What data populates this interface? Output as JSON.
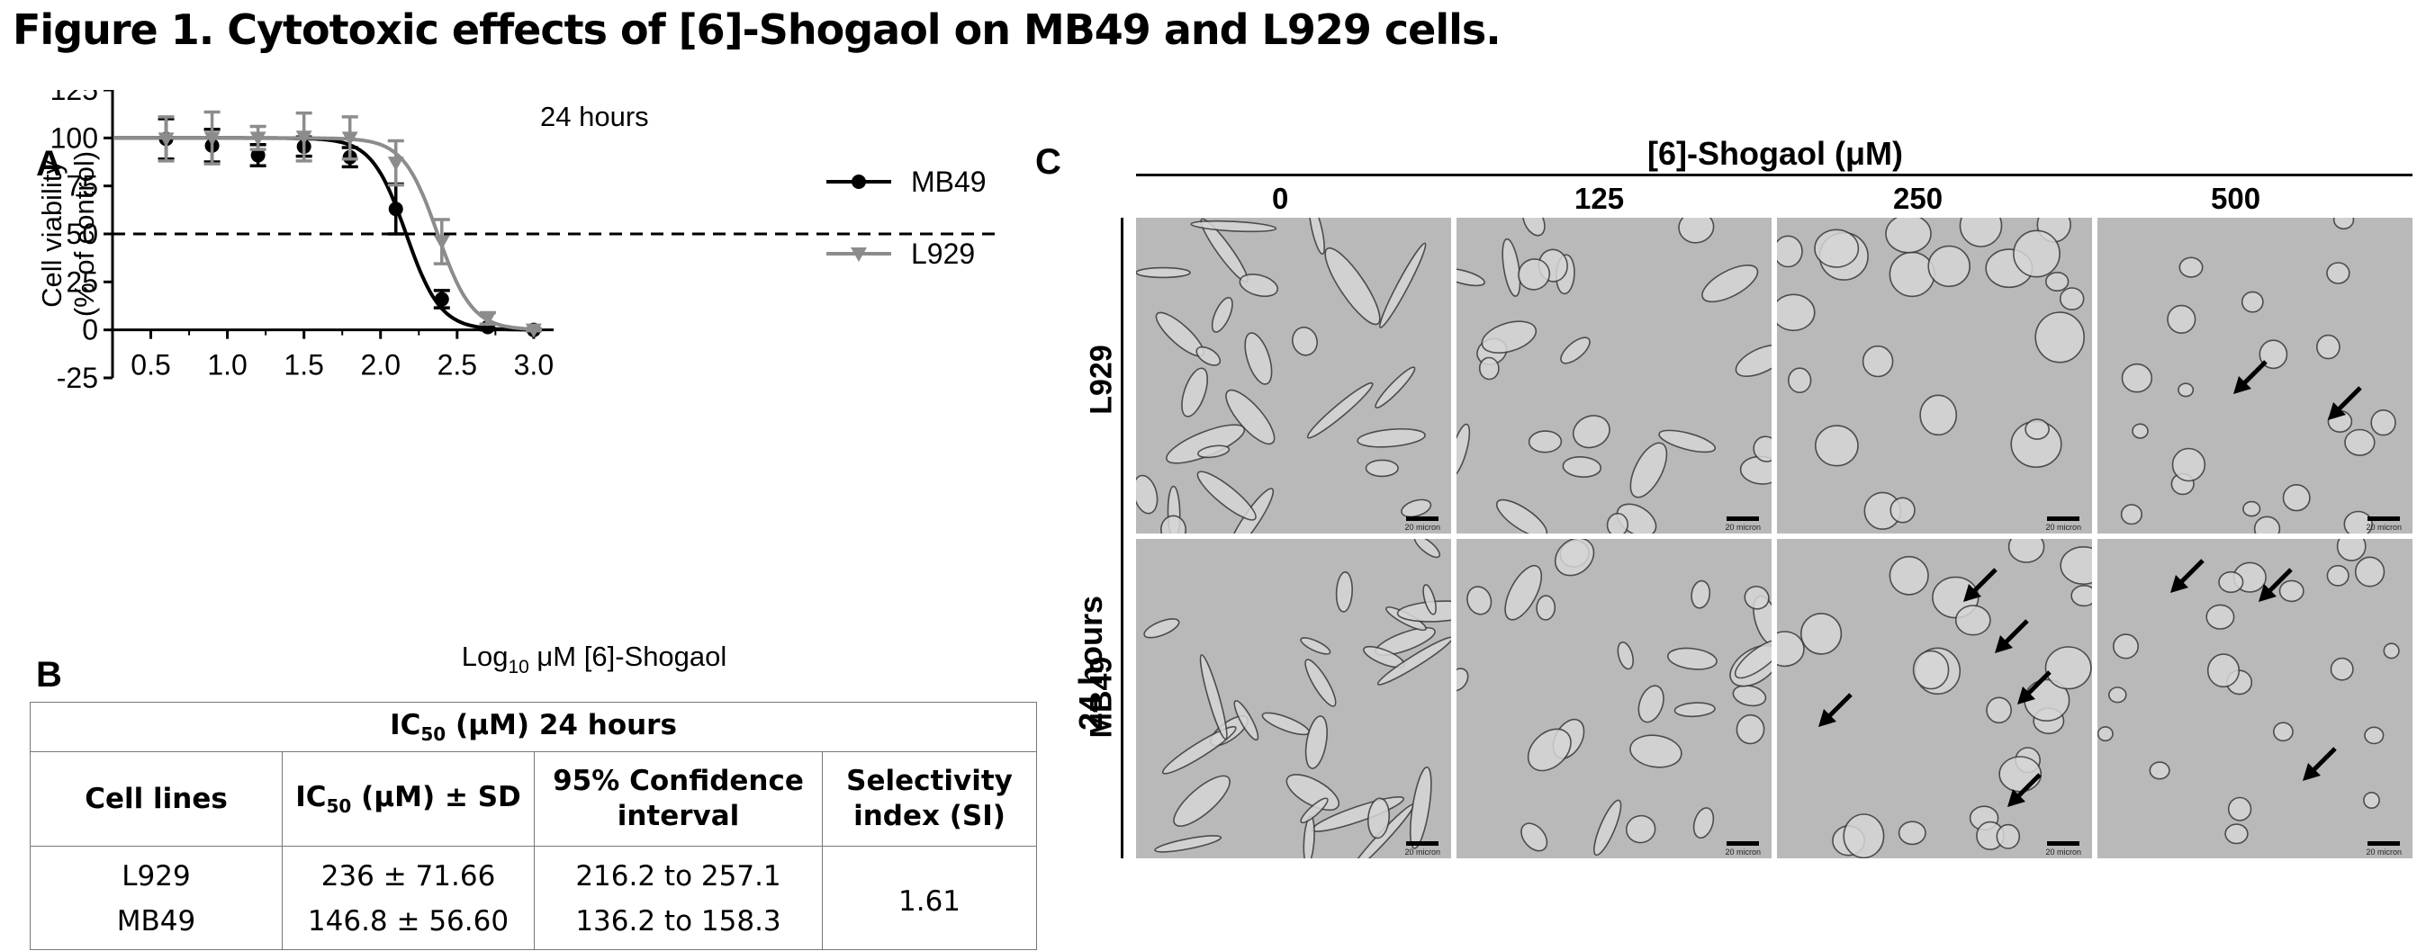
{
  "figure": {
    "title": "Figure 1. Cytotoxic effects of [6]-Shogaol on MB49 and L929 cells."
  },
  "panel_a": {
    "label": "A",
    "chart_data": {
      "type": "line",
      "title": "24 hours",
      "xlabel": "Log10 μM [6]-Shogaol",
      "xlabel_parts": {
        "pre": "Log",
        "sub": "10",
        "post": " μM [6]-Shogaol"
      },
      "ylabel_line1": "Cell viability",
      "ylabel_line2": "(% of control)",
      "xlim": [
        0.25,
        3.13
      ],
      "ylim": [
        -25,
        125
      ],
      "x_ticks": [
        "0.5",
        "1.0",
        "1.5",
        "2.0",
        "2.5",
        "3.0"
      ],
      "x_tick_values": [
        0.5,
        1.0,
        1.5,
        2.0,
        2.5,
        3.0
      ],
      "y_ticks": [
        "-25",
        "0",
        "25",
        "50",
        "75",
        "100",
        "125"
      ],
      "y_tick_values": [
        -25,
        0,
        25,
        50,
        75,
        100,
        125
      ],
      "reference_line": {
        "y": 50,
        "style": "dashed"
      },
      "legend_position": "top-right",
      "series": [
        {
          "name": "MB49",
          "color": "#000000",
          "marker": "circle",
          "x": [
            0.6,
            0.9,
            1.2,
            1.5,
            1.8,
            2.1,
            2.4,
            2.7,
            3.0
          ],
          "y": [
            99.5,
            96,
            91,
            95.5,
            90,
            63,
            16,
            1.5,
            0
          ],
          "err": [
            10.5,
            8.5,
            5.5,
            5,
            5,
            13,
            4.5,
            1.5,
            0.5
          ],
          "curve_log_ic50": 2.167,
          "curve_hill": 1.55
        },
        {
          "name": "L929",
          "color": "#8c8c8c",
          "marker": "triangle-down",
          "x": [
            0.6,
            0.9,
            1.2,
            1.5,
            1.8,
            2.1,
            2.4,
            2.7,
            3.0
          ],
          "y": [
            99.5,
            100,
            100,
            100.5,
            100,
            87,
            46,
            6,
            0
          ],
          "err": [
            11.5,
            13.5,
            6,
            12.5,
            11,
            11.5,
            11.5,
            3,
            0.5
          ],
          "curve_log_ic50": 2.373,
          "curve_hill": 1.55
        }
      ]
    }
  },
  "panel_b": {
    "label": "B",
    "table": {
      "title_prefix": "IC",
      "title_sub": "50",
      "title_suffix": " (μM) 24 hours",
      "headers": {
        "cell_lines": "Cell lines",
        "ic50_prefix": "IC",
        "ic50_sub": "50",
        "ic50_suffix": " (μM) ± SD",
        "ci_line1": "95% Confidence",
        "ci_line2": "interval",
        "si_line1": "Selectivity",
        "si_line2": "index (SI)"
      },
      "rows": [
        {
          "cell_line": "L929",
          "ic50": "236 ± 71.66",
          "ci": "216.2 to 257.1"
        },
        {
          "cell_line": "MB49",
          "ic50": "146.8 ± 56.60",
          "ci": "136.2 to 158.3"
        }
      ],
      "selectivity_index": "1.61"
    }
  },
  "panel_c": {
    "label": "C",
    "compound_header": "[6]-Shogaol (μM)",
    "concentrations": [
      "0",
      "125",
      "250",
      "500"
    ],
    "time_label": "24 hours",
    "cell_lines": [
      "L929",
      "MB49"
    ],
    "scale_bar_text": "20 micron",
    "colors": {
      "tile_background": "#b9b9b9",
      "cell_fill": "#d6d6d6",
      "cell_edge": "#3a3a3a"
    }
  }
}
